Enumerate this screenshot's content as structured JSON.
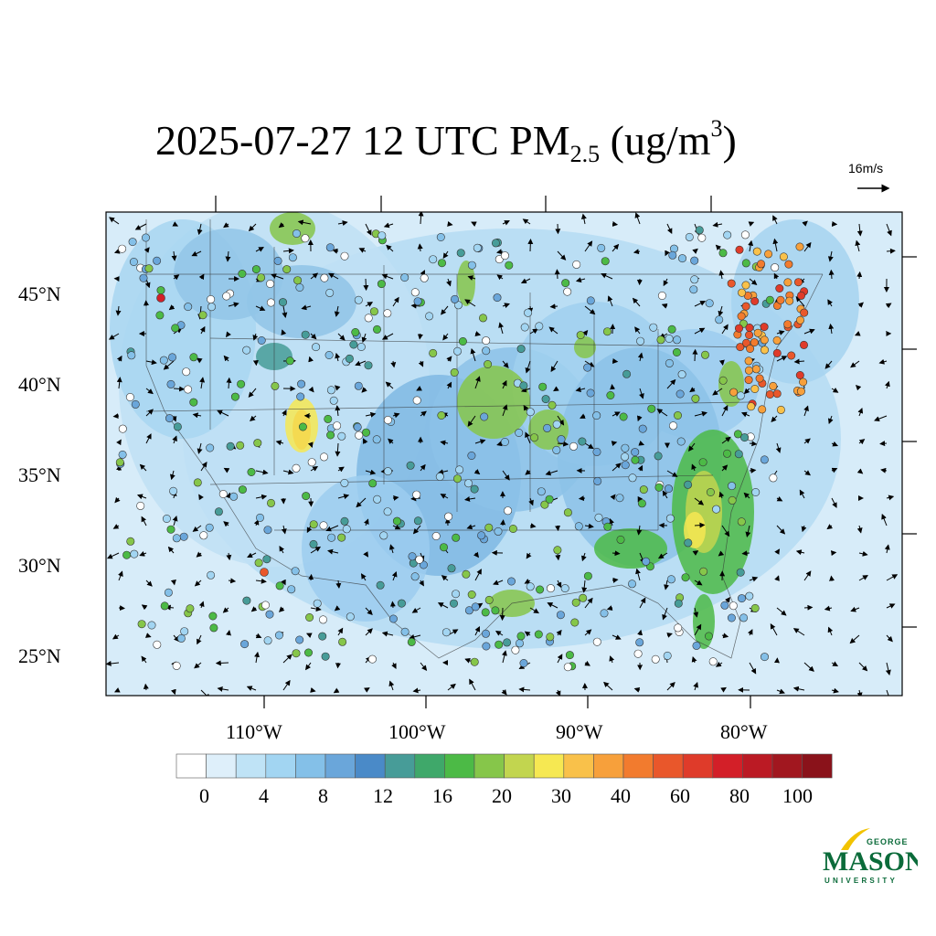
{
  "title": {
    "main": "2025-07-27 12 UTC PM",
    "subscript": "2.5",
    "units_open": " (ug/m",
    "units_sup": "3",
    "units_close": ")"
  },
  "vector_reference": {
    "label": "16m/s"
  },
  "axes": {
    "lat_labels": [
      "45°N",
      "40°N",
      "35°N",
      "30°N",
      "25°N"
    ],
    "lon_labels": [
      "110°W",
      "100°W",
      "90°W",
      "80°W"
    ]
  },
  "colorbar": {
    "labels": [
      "0",
      "4",
      "8",
      "12",
      "16",
      "20",
      "30",
      "40",
      "60",
      "80",
      "100"
    ],
    "colors": [
      "#ffffff",
      "#deeffa",
      "#bfe3f6",
      "#a2d5f2",
      "#84c0e8",
      "#6aa6da",
      "#4a8ac8",
      "#479c98",
      "#3fa86a",
      "#4cba46",
      "#86c64a",
      "#c2d54f",
      "#f6e852",
      "#f9c14a",
      "#f7a03b",
      "#f27b2e",
      "#e9572b",
      "#df3b2a",
      "#d31f28",
      "#bb1a24",
      "#a1171f",
      "#8a121a"
    ]
  },
  "logo": {
    "line1": "GEORGE",
    "line2": "MASON",
    "line3": "UNIVERSITY",
    "color": "#0b6b3a",
    "accent": "#f2c300"
  }
}
